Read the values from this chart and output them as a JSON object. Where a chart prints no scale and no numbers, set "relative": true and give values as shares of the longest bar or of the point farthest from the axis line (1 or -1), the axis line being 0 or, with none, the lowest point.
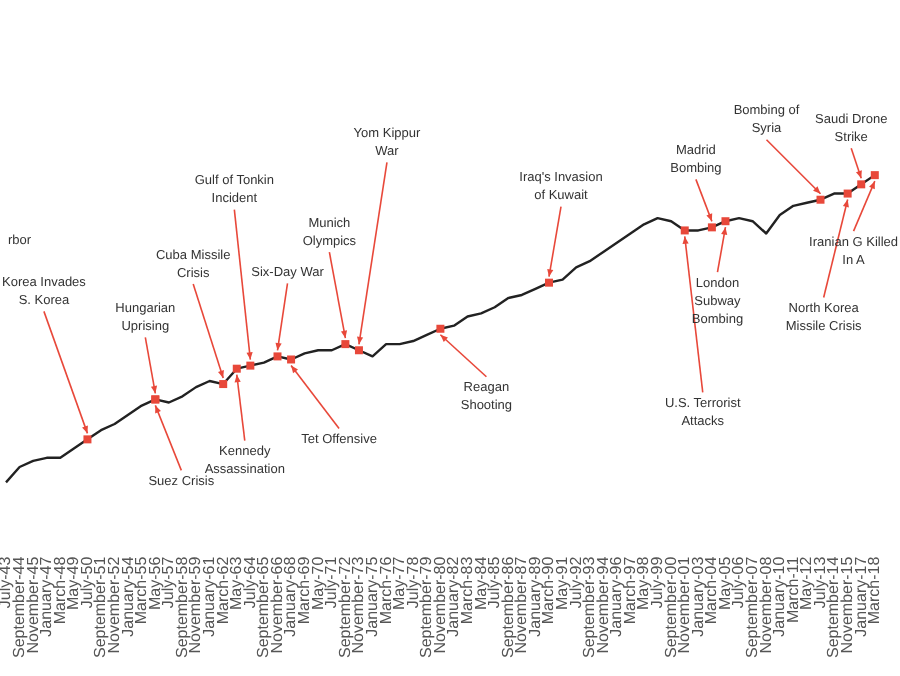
{
  "chart_data": {
    "type": "line",
    "relative": true,
    "color": "#222222",
    "categories": [
      "July-43",
      "September-44",
      "November-45",
      "January-47",
      "March-48",
      "May-49",
      "July-50",
      "September-51",
      "November-52",
      "January-54",
      "March-55",
      "May-56",
      "July-57",
      "September-58",
      "November-59",
      "January-61",
      "March-62",
      "May-63",
      "July-64",
      "September-65",
      "November-66",
      "January-68",
      "March-69",
      "May-70",
      "July-71",
      "September-72",
      "November-73",
      "January-75",
      "March-76",
      "May-77",
      "July-78",
      "September-79",
      "November-80",
      "January-82",
      "March-83",
      "May-84",
      "July-85",
      "September-86",
      "November-87",
      "January-89",
      "March-90",
      "May-91",
      "July-92",
      "September-93",
      "November-94",
      "January-96",
      "March-97",
      "May-98",
      "July-99",
      "September-00",
      "November-01",
      "January-03",
      "March-04",
      "May-05",
      "July-06",
      "September-07",
      "November-08",
      "January-10",
      "March-11",
      "May-12",
      "July-13",
      "September-14",
      "November-15",
      "January-17",
      "March-18"
    ],
    "values": [
      0,
      0.05,
      0.07,
      0.08,
      0.08,
      0.11,
      0.14,
      0.17,
      0.19,
      0.22,
      0.25,
      0.27,
      0.26,
      0.28,
      0.31,
      0.33,
      0.32,
      0.37,
      0.38,
      0.39,
      0.41,
      0.4,
      0.42,
      0.43,
      0.43,
      0.45,
      0.43,
      0.41,
      0.45,
      0.45,
      0.46,
      0.48,
      0.5,
      0.51,
      0.54,
      0.55,
      0.57,
      0.6,
      0.61,
      0.63,
      0.65,
      0.66,
      0.7,
      0.72,
      0.75,
      0.78,
      0.81,
      0.84,
      0.86,
      0.85,
      0.82,
      0.82,
      0.83,
      0.85,
      0.86,
      0.85,
      0.81,
      0.87,
      0.9,
      0.91,
      0.92,
      0.94,
      0.94,
      0.97,
      1.0
    ],
    "annotations": [
      "rbor",
      {
        "text": "Korea Invades S. Korea",
        "x": "July-50",
        "y": 0.14
      },
      {
        "text": "Hungarian Uprising",
        "x": "May-56",
        "y": 0.27
      },
      {
        "text": "Suez Crisis",
        "x": "May-56",
        "y": 0.27
      },
      {
        "text": "Cuba Missile Crisis",
        "x": "March-62",
        "y": 0.32
      },
      {
        "text": "Gulf of Tonkin Incident",
        "x": "July-64",
        "y": 0.38
      },
      {
        "text": "Kennedy Assassination",
        "x": "May-63",
        "y": 0.37
      },
      {
        "text": "Six-Day War",
        "x": "November-66",
        "y": 0.41
      },
      {
        "text": "Tet Offensive",
        "x": "January-68",
        "y": 0.4
      },
      {
        "text": "Munich Olympics",
        "x": "September-72",
        "y": 0.45
      },
      {
        "text": "Yom Kippur War",
        "x": "November-73",
        "y": 0.43
      },
      {
        "text": "Reagan Shooting",
        "x": "November-80",
        "y": 0.5
      },
      {
        "text": "Iraq's Invasion of Kuwait",
        "x": "March-90",
        "y": 0.65
      },
      {
        "text": "U.S. Terrorist Attacks",
        "x": "November-01",
        "y": 0.82
      },
      {
        "text": "Madrid Bombing",
        "x": "March-04",
        "y": 0.83
      },
      {
        "text": "London Subway Bombing",
        "x": "May-05",
        "y": 0.85
      },
      {
        "text": "Bombing of Syria",
        "x": "July-13",
        "y": 0.92
      },
      {
        "text": "Saudi Drone Strike",
        "x": "January-17",
        "y": 0.97
      },
      {
        "text": "North Korea Missile Crisis",
        "x": "November-15",
        "y": 0.94
      },
      {
        "text": "Iranian G Killed In A",
        "x": "March-18",
        "y": 1.0
      }
    ]
  }
}
